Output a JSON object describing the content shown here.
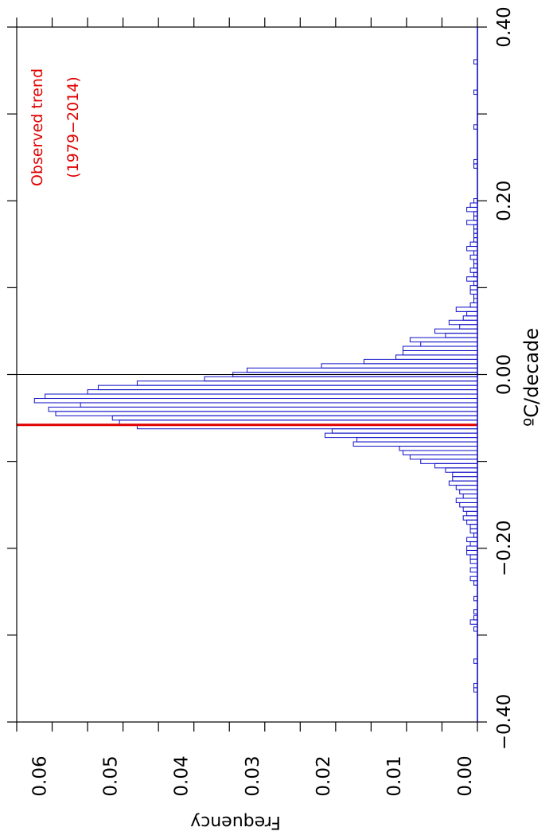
{
  "chart_data": {
    "type": "bar",
    "orientation": "rotated-90-clockwise",
    "xlabel": "ºC/decade",
    "ylabel": "Frequency",
    "xlim": [
      -0.4,
      0.4
    ],
    "ylim": [
      0.0,
      0.065
    ],
    "x_ticks": [
      "−0.40",
      "−0.20",
      "0.00",
      "0.20",
      "0.40"
    ],
    "y_ticks": [
      "0.00",
      "0.01",
      "0.02",
      "0.03",
      "0.04",
      "0.05",
      "0.06"
    ],
    "grid": false,
    "bar_color": "#1010c8",
    "observed_color": "#e00000",
    "zero_line_color": "#000000",
    "observed_trend": {
      "value": -0.058,
      "label_line1": "Observed trend",
      "label_line2": "(1979−2014)"
    },
    "bin_width": 0.005,
    "x": [
      -0.363,
      -0.358,
      -0.33,
      -0.293,
      -0.285,
      -0.28,
      -0.273,
      -0.258,
      -0.24,
      -0.235,
      -0.225,
      -0.215,
      -0.21,
      -0.205,
      -0.2,
      -0.195,
      -0.19,
      -0.185,
      -0.18,
      -0.175,
      -0.17,
      -0.165,
      -0.16,
      -0.155,
      -0.15,
      -0.145,
      -0.14,
      -0.135,
      -0.13,
      -0.125,
      -0.12,
      -0.115,
      -0.11,
      -0.105,
      -0.1,
      -0.095,
      -0.09,
      -0.085,
      -0.08,
      -0.075,
      -0.07,
      -0.065,
      -0.06,
      -0.055,
      -0.05,
      -0.045,
      -0.04,
      -0.035,
      -0.03,
      -0.025,
      -0.02,
      -0.015,
      -0.01,
      -0.005,
      0.0,
      0.005,
      0.01,
      0.015,
      0.02,
      0.025,
      0.03,
      0.035,
      0.04,
      0.045,
      0.05,
      0.055,
      0.06,
      0.065,
      0.07,
      0.075,
      0.08,
      0.085,
      0.09,
      0.095,
      0.1,
      0.105,
      0.11,
      0.115,
      0.12,
      0.125,
      0.13,
      0.135,
      0.14,
      0.145,
      0.15,
      0.155,
      0.16,
      0.165,
      0.17,
      0.175,
      0.18,
      0.185,
      0.19,
      0.195,
      0.2,
      0.24,
      0.245,
      0.285,
      0.325,
      0.36
    ],
    "values": [
      0.0005,
      0.0005,
      0.0005,
      0.0005,
      0.001,
      0.0005,
      0.0005,
      0.0005,
      0.0005,
      0.001,
      0.001,
      0.001,
      0.001,
      0.0015,
      0.0015,
      0.001,
      0.0015,
      0.0005,
      0.001,
      0.001,
      0.0015,
      0.002,
      0.0015,
      0.002,
      0.0025,
      0.003,
      0.002,
      0.0025,
      0.003,
      0.004,
      0.0035,
      0.0035,
      0.0045,
      0.006,
      0.008,
      0.0095,
      0.0105,
      0.011,
      0.0175,
      0.017,
      0.0215,
      0.0205,
      0.048,
      0.0505,
      0.0515,
      0.0595,
      0.0605,
      0.056,
      0.0625,
      0.061,
      0.055,
      0.0535,
      0.048,
      0.0385,
      0.0345,
      0.0325,
      0.022,
      0.016,
      0.0115,
      0.0105,
      0.0105,
      0.008,
      0.0095,
      0.0045,
      0.006,
      0.0025,
      0.004,
      0.002,
      0.0015,
      0.003,
      0.001,
      0.0005,
      0.0005,
      0.001,
      0.001,
      0.0005,
      0.0015,
      0.0005,
      0.001,
      0.0005,
      0.0005,
      0.001,
      0.0005,
      0.0015,
      0.001,
      0.0005,
      0.0005,
      0.0005,
      0.0005,
      0.0015,
      0.0005,
      0.0005,
      0.0015,
      0.001,
      0.0005,
      0.0005,
      0.0005,
      0.0005,
      0.0005,
      0.0005
    ]
  }
}
